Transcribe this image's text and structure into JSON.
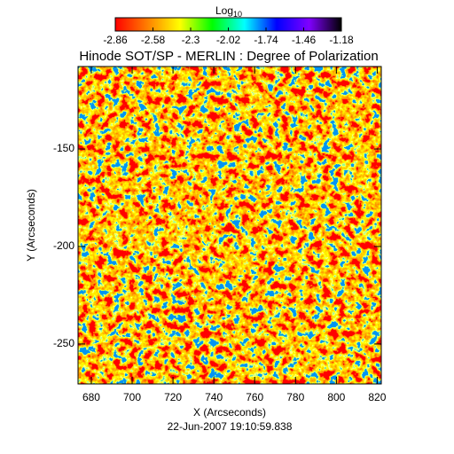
{
  "chart_data": {
    "type": "heatmap",
    "title": "Hinode SOT/SP - MERLIN : Degree of Polarization",
    "xlabel": "X (Arcseconds)",
    "ylabel": "Y (Arcseconds)",
    "date": "22-Jun-2007 19:10:59.838",
    "xlim": [
      673.5,
      822
    ],
    "xticks": [
      680,
      700,
      720,
      740,
      760,
      780,
      800,
      820
    ],
    "ylim": [
      -270.5,
      -107.7
    ],
    "yticks": [
      -150,
      -200,
      -250
    ],
    "colorbar": {
      "label": "Log",
      "label_subscript": "10",
      "lim": [
        -2.86,
        -1.18
      ],
      "ticks": [
        -2.86,
        -2.58,
        -2.3,
        -2.02,
        -1.74,
        -1.46,
        -1.18
      ],
      "colors": [
        "#ff0000",
        "#ff8000",
        "#ffff00",
        "#00ff00",
        "#00ffff",
        "#0000ff",
        "#8000ff",
        "#000000"
      ]
    }
  }
}
